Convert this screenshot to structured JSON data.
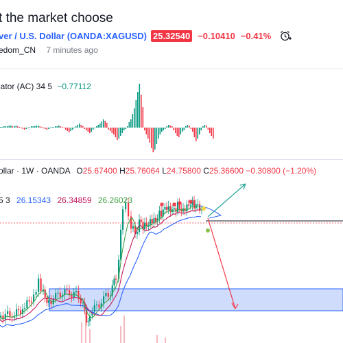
{
  "header": {
    "title": "t the market choose",
    "symbol_name": "ver / U.S. Dollar (OANDA:XAGUSD)",
    "price": "25.32540",
    "change": "−0.10410",
    "change_pct": "−0.41%",
    "author": "edom_CN",
    "time_ago": "7 minutes ago"
  },
  "ac_indicator": {
    "label": "lator (AC) 34 5",
    "value": "−0.77112"
  },
  "main_chart": {
    "legend_symbol": "ollar · 1W · OANDA",
    "o_label": "O",
    "o_value": "25.67400",
    "h_label": "H",
    "h_value": "25.76064",
    "l_label": "L",
    "l_value": "24.75800",
    "c_label": "C",
    "c_value": "25.36600",
    "change": "−0.30800 (−1.20%)"
  },
  "ma_legend": {
    "params": "5 3",
    "ma1": "26.15343",
    "ma2": "26.34859",
    "ma3": "26.26023"
  },
  "colors": {
    "up": "#089981",
    "down": "#f23645",
    "blue_line": "#2962ff",
    "zone_fill": "#cfdcfc",
    "arrow_up": "#26a69a",
    "arrow_down": "#f23645"
  },
  "icons": {
    "alarm": "alarm-clock-plus-icon"
  }
}
